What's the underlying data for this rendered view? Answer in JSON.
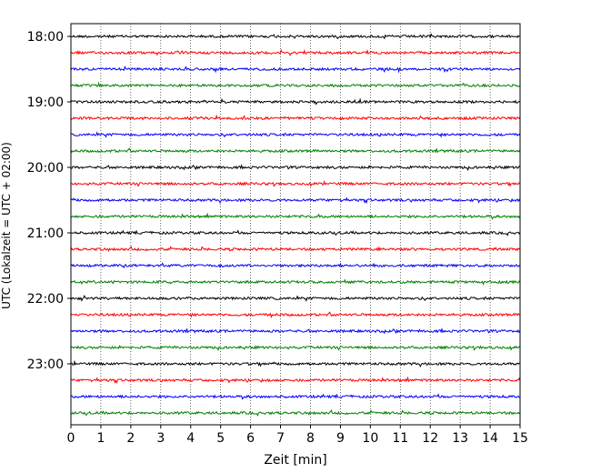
{
  "chart_data": {
    "type": "line",
    "title": "",
    "xlabel": "Zeit  [min]",
    "ylabel": "UTC (Lokalzeit = UTC + 02:00)",
    "xlim": [
      0,
      15
    ],
    "x_ticks": [
      0,
      1,
      2,
      3,
      4,
      5,
      6,
      7,
      8,
      9,
      10,
      11,
      12,
      13,
      14,
      15
    ],
    "x_grid": "dotted vertical lines at every minute",
    "y_ticks": [
      "18:00",
      "19:00",
      "20:00",
      "21:00",
      "22:00",
      "23:00"
    ],
    "trace_interval_min": 15,
    "trace_colors": [
      "#000000",
      "#ff0000",
      "#0000ff",
      "#008000"
    ],
    "traces": [
      {
        "start": "18:00",
        "color": "#000000"
      },
      {
        "start": "18:15",
        "color": "#ff0000"
      },
      {
        "start": "18:30",
        "color": "#0000ff"
      },
      {
        "start": "18:45",
        "color": "#008000"
      },
      {
        "start": "19:00",
        "color": "#000000"
      },
      {
        "start": "19:15",
        "color": "#ff0000"
      },
      {
        "start": "19:30",
        "color": "#0000ff"
      },
      {
        "start": "19:45",
        "color": "#008000"
      },
      {
        "start": "20:00",
        "color": "#000000"
      },
      {
        "start": "20:15",
        "color": "#ff0000"
      },
      {
        "start": "20:30",
        "color": "#0000ff"
      },
      {
        "start": "20:45",
        "color": "#008000"
      },
      {
        "start": "21:00",
        "color": "#000000"
      },
      {
        "start": "21:15",
        "color": "#ff0000"
      },
      {
        "start": "21:30",
        "color": "#0000ff"
      },
      {
        "start": "21:45",
        "color": "#008000"
      },
      {
        "start": "22:00",
        "color": "#000000"
      },
      {
        "start": "22:15",
        "color": "#ff0000"
      },
      {
        "start": "22:30",
        "color": "#0000ff"
      },
      {
        "start": "22:45",
        "color": "#008000"
      },
      {
        "start": "23:00",
        "color": "#000000"
      },
      {
        "start": "23:15",
        "color": "#ff0000"
      },
      {
        "start": "23:30",
        "color": "#0000ff"
      },
      {
        "start": "23:45",
        "color": "#008000"
      }
    ]
  }
}
